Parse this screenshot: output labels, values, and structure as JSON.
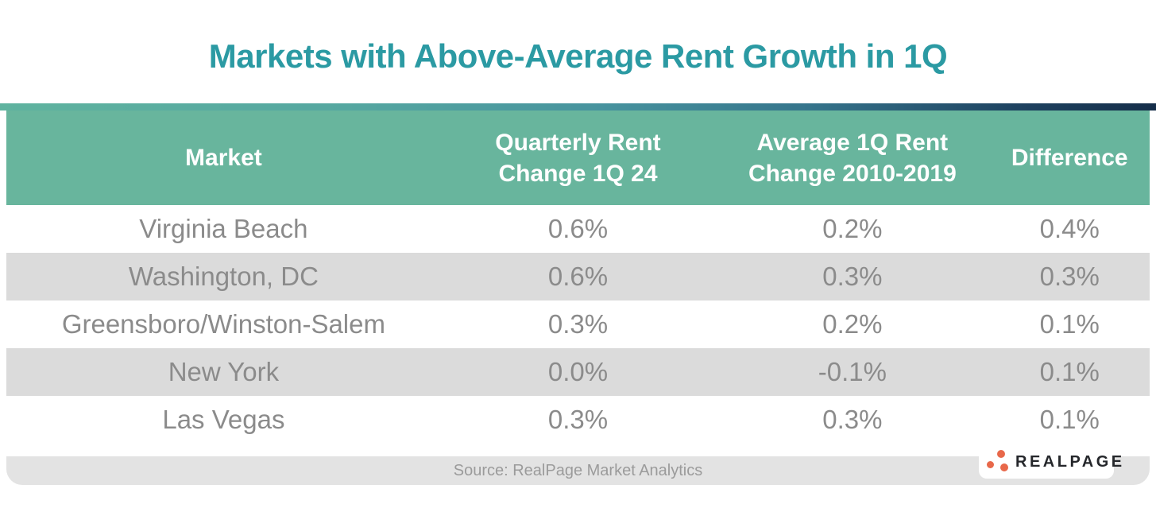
{
  "chart_data": {
    "type": "table",
    "title": "Markets with Above-Average Rent Growth in 1Q",
    "columns": [
      "Market",
      "Quarterly Rent Change 1Q 24",
      "Average 1Q Rent Change 2010-2019",
      "Difference"
    ],
    "rows": [
      [
        "Virginia Beach",
        "0.6%",
        "0.2%",
        "0.4%"
      ],
      [
        "Washington, DC",
        "0.6%",
        "0.3%",
        "0.3%"
      ],
      [
        "Greensboro/Winston-Salem",
        "0.3%",
        "0.2%",
        "0.1%"
      ],
      [
        "New York",
        "0.0%",
        "-0.1%",
        "0.1%"
      ],
      [
        "Las Vegas",
        "0.3%",
        "0.3%",
        "0.1%"
      ]
    ],
    "source": "Source: RealPage Market Analytics",
    "layout": "white card, teal-to-navy gradient accent bar above green header row, alternating white/gray body rows, gray source footer"
  },
  "logo": {
    "text": "REALPAGE"
  },
  "colors": {
    "title-teal": "#2B9AA3",
    "header-green": "#68B59D",
    "row-alt-gray": "#DBDBDB",
    "footer-gray": "#E3E3E3",
    "body-text-gray": "#8B8B8B",
    "source-text-gray": "#9B9B9B",
    "logo-orange": "#E8684A",
    "logo-text-dark": "#25272B",
    "gradient-left": "#5FB39F",
    "gradient-mid": "#47939E",
    "gradient-right": "#152E49"
  }
}
